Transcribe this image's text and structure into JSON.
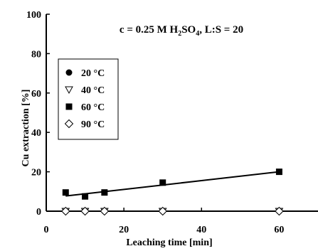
{
  "chart_data": {
    "type": "scatter",
    "xlabel": "Leaching time [min]",
    "ylabel": "Cu extraction [%]",
    "xlim": [
      0,
      70
    ],
    "ylim": [
      0,
      100
    ],
    "xticks": [
      0,
      20,
      40,
      60
    ],
    "yticks": [
      0,
      20,
      40,
      60,
      80,
      100
    ],
    "xtick_labels": [
      "0",
      "20",
      "40",
      "60"
    ],
    "ytick_labels": [
      "0",
      "20",
      "40",
      "60",
      "80",
      "100"
    ],
    "grid": false,
    "legend_position": "left",
    "annotation": {
      "prefix": "c = 0.25 M  H",
      "sub1": "2",
      "mid": "SO",
      "sub2": "4",
      "suffix": ", L:S = 20"
    },
    "series": [
      {
        "name": "20 °C",
        "marker": "filled-circle",
        "x": [
          5,
          10,
          15,
          30,
          60
        ],
        "y": [
          0,
          0,
          0,
          0,
          0
        ],
        "fit": [
          [
            5,
            0
          ],
          [
            60,
            0
          ]
        ]
      },
      {
        "name": "40 °C",
        "marker": "open-triangle-down",
        "x": [
          5,
          10,
          15,
          30,
          60
        ],
        "y": [
          0,
          0,
          0,
          0,
          0
        ],
        "fit": [
          [
            5,
            0
          ],
          [
            60,
            0
          ]
        ]
      },
      {
        "name": "60 °C",
        "marker": "filled-square",
        "x": [
          5,
          10,
          15,
          30,
          60
        ],
        "y": [
          9.5,
          7.5,
          9.5,
          14.5,
          20
        ],
        "fit": [
          [
            5,
            7.7
          ],
          [
            60,
            20
          ]
        ]
      },
      {
        "name": "90 °C",
        "marker": "open-diamond",
        "x": [
          5,
          10,
          15,
          30,
          60
        ],
        "y": [
          0,
          0,
          0,
          0,
          0
        ],
        "fit": [
          [
            5,
            0
          ],
          [
            60,
            0
          ]
        ]
      }
    ]
  }
}
